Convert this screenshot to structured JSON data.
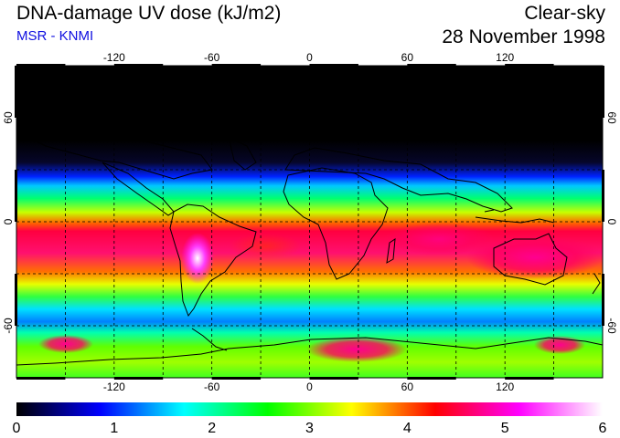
{
  "header": {
    "title": "DNA-damage UV dose (kJ/m2)",
    "subtitle": "MSR - KNMI",
    "condition": "Clear-sky",
    "date": "28 November 1998"
  },
  "map": {
    "lon_ticks": [
      "-120",
      "-60",
      "0",
      "60",
      "120"
    ],
    "lat_ticks": [
      "60",
      "0",
      "-60"
    ],
    "lon_range": [
      -180,
      180
    ],
    "lat_range": [
      -90,
      90
    ],
    "gridlines": "dashed",
    "colors": {
      "polar_night": "#000000",
      "land_outline": "#000000"
    }
  },
  "colorbar": {
    "labels": [
      "0",
      "1",
      "2",
      "3",
      "4",
      "5",
      "6"
    ],
    "range": [
      0,
      6
    ],
    "stops": [
      "#000000",
      "#0000ff",
      "#00ffff",
      "#00ff00",
      "#ffff00",
      "#ff0000",
      "#ff00ff",
      "#ffffff"
    ]
  }
}
